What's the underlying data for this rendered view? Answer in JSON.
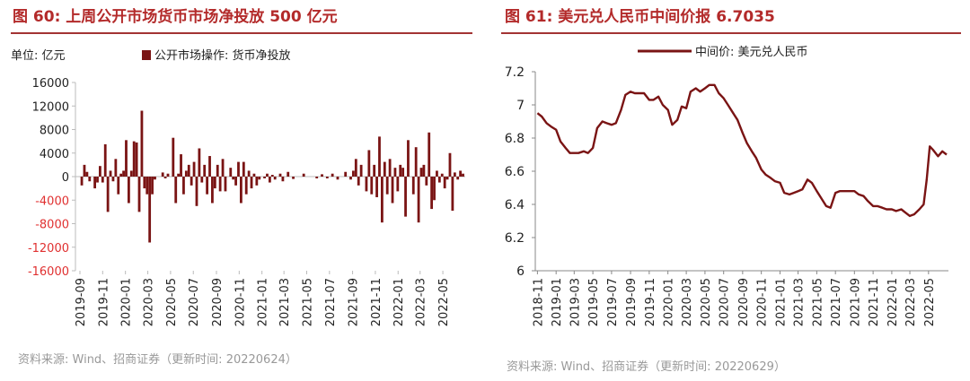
{
  "left_panel": {
    "title": "图 60:  上周公开市场货币市场净投放 500 亿元",
    "source": "资料来源:  Wind、招商证券（更新时间: 20220624）"
  },
  "right_panel": {
    "title": "图 61:  美元兑人民币中间价报 6.7035",
    "source": "资料来源:  Wind、招商证券（更新时间: 20220629）"
  },
  "colors": {
    "bar": "#7a1414",
    "line": "#7a1414",
    "title": "#b32a2a",
    "neg_ticks": "#e03030"
  },
  "chart_data": [
    {
      "type": "bar",
      "unit_label": "单位:  亿元",
      "legend": {
        "name": "公开市场操作: 货币净投放",
        "placement": "top-left"
      },
      "ylim": [
        -16000,
        16000
      ],
      "yticks": [
        "16000",
        "12000",
        "8000",
        "4000",
        "0",
        "-4000",
        "-8000",
        "-12000",
        "-16000"
      ],
      "xticks": [
        "2019-09",
        "2019-11",
        "2020-01",
        "2020-03",
        "2020-05",
        "2020-07",
        "2020-09",
        "2020-11",
        "2021-01",
        "2021-03",
        "2021-05",
        "2021-07",
        "2021-09",
        "2021-11",
        "2022-01",
        "2022-03",
        "2022-05"
      ],
      "grid": false,
      "series": [
        {
          "name": "公开市场操作: 货币净投放",
          "x": [
            "2019-09-06",
            "2019-09-13",
            "2019-09-20",
            "2019-09-27",
            "2019-10-11",
            "2019-10-18",
            "2019-10-25",
            "2019-11-01",
            "2019-11-08",
            "2019-11-15",
            "2019-11-22",
            "2019-11-29",
            "2019-12-06",
            "2019-12-13",
            "2019-12-20",
            "2019-12-27",
            "2020-01-03",
            "2020-01-10",
            "2020-01-17",
            "2020-01-24",
            "2020-01-31",
            "2020-02-07",
            "2020-02-14",
            "2020-02-21",
            "2020-02-28",
            "2020-03-06",
            "2020-03-13",
            "2020-03-20",
            "2020-04-10",
            "2020-04-17",
            "2020-04-24",
            "2020-05-08",
            "2020-05-15",
            "2020-05-22",
            "2020-05-29",
            "2020-06-05",
            "2020-06-12",
            "2020-06-19",
            "2020-06-26",
            "2020-07-03",
            "2020-07-10",
            "2020-07-17",
            "2020-07-24",
            "2020-07-31",
            "2020-08-07",
            "2020-08-14",
            "2020-08-21",
            "2020-08-28",
            "2020-09-04",
            "2020-09-11",
            "2020-09-18",
            "2020-09-25",
            "2020-10-09",
            "2020-10-16",
            "2020-10-23",
            "2020-10-30",
            "2020-11-06",
            "2020-11-13",
            "2020-11-20",
            "2020-11-27",
            "2020-12-04",
            "2020-12-11",
            "2020-12-18",
            "2020-12-25",
            "2021-01-08",
            "2021-01-15",
            "2021-01-22",
            "2021-01-29",
            "2021-02-05",
            "2021-02-19",
            "2021-02-26",
            "2021-03-12",
            "2021-03-26",
            "2021-04-23",
            "2021-05-28",
            "2021-06-11",
            "2021-06-25",
            "2021-07-09",
            "2021-07-23",
            "2021-08-13",
            "2021-08-27",
            "2021-09-03",
            "2021-09-10",
            "2021-09-17",
            "2021-09-24",
            "2021-10-08",
            "2021-10-15",
            "2021-10-22",
            "2021-10-29",
            "2021-11-05",
            "2021-11-12",
            "2021-11-19",
            "2021-11-26",
            "2021-12-03",
            "2021-12-10",
            "2021-12-17",
            "2021-12-24",
            "2021-12-31",
            "2022-01-07",
            "2022-01-14",
            "2022-01-21",
            "2022-01-28",
            "2022-02-11",
            "2022-02-18",
            "2022-02-25",
            "2022-03-04",
            "2022-03-11",
            "2022-03-18",
            "2022-03-25",
            "2022-04-01",
            "2022-04-08",
            "2022-04-15",
            "2022-04-22",
            "2022-04-29",
            "2022-05-06",
            "2022-05-13",
            "2022-05-20",
            "2022-05-27",
            "2022-06-02",
            "2022-06-10",
            "2022-06-17",
            "2022-06-24"
          ],
          "values": [
            -1500,
            2000,
            800,
            -800,
            -2000,
            -1000,
            1800,
            -1000,
            5500,
            -6000,
            1000,
            -800,
            3000,
            -3000,
            500,
            1000,
            6200,
            -4500,
            1000,
            6000,
            5800,
            -6000,
            11200,
            -2000,
            -3000,
            -11200,
            -3000,
            -500,
            700,
            -300,
            500,
            6600,
            -4500,
            500,
            3800,
            -3000,
            1000,
            2000,
            -1500,
            2500,
            -5000,
            4800,
            -1000,
            2000,
            -3000,
            3500,
            -4500,
            -2000,
            2000,
            -2500,
            3000,
            -2500,
            1500,
            -500,
            -1500,
            2500,
            -4500,
            2500,
            -3000,
            1000,
            -2000,
            500,
            -1500,
            -500,
            -300,
            500,
            -1000,
            300,
            -500,
            500,
            -800,
            800,
            -400,
            500,
            -300,
            400,
            -300,
            500,
            -500,
            800,
            -500,
            1000,
            3000,
            -1500,
            2000,
            -2500,
            4500,
            -3000,
            2000,
            -3500,
            6800,
            -7800,
            2500,
            -3000,
            3000,
            -4500,
            1500,
            -2500,
            2000,
            1500,
            -6800,
            6200,
            -3000,
            5000,
            -7800,
            1500,
            2000,
            -1500,
            7500,
            -5500,
            -4000,
            1000,
            -1000,
            500,
            -2000,
            -500,
            4000,
            -5800,
            700,
            -500,
            1000,
            500
          ]
        }
      ]
    },
    {
      "type": "line",
      "ylim": [
        6,
        7.2
      ],
      "yticks": [
        "7.2",
        "7",
        "6.8",
        "6.6",
        "6.4",
        "6.2",
        "6"
      ],
      "xticks": [
        "2018-11",
        "2019-01",
        "2019-03",
        "2019-05",
        "2019-07",
        "2019-09",
        "2019-11",
        "2020-01",
        "2020-03",
        "2020-05",
        "2020-07",
        "2020-09",
        "2020-11",
        "2021-01",
        "2021-03",
        "2021-05",
        "2021-07",
        "2021-09",
        "2021-11",
        "2022-01",
        "2022-03",
        "2022-05"
      ],
      "legend": {
        "name": "中间价: 美元兑人民币",
        "placement": "top"
      },
      "grid": false,
      "series": [
        {
          "name": "中间价: 美元兑人民币",
          "x": [
            "2018-11-01",
            "2018-11-15",
            "2018-12-01",
            "2018-12-15",
            "2019-01-01",
            "2019-01-15",
            "2019-02-01",
            "2019-02-15",
            "2019-03-01",
            "2019-03-15",
            "2019-04-01",
            "2019-04-15",
            "2019-05-01",
            "2019-05-15",
            "2019-06-01",
            "2019-06-15",
            "2019-07-01",
            "2019-07-15",
            "2019-08-01",
            "2019-08-15",
            "2019-09-01",
            "2019-09-15",
            "2019-10-01",
            "2019-10-15",
            "2019-11-01",
            "2019-11-15",
            "2019-12-01",
            "2019-12-15",
            "2020-01-01",
            "2020-01-15",
            "2020-02-01",
            "2020-02-15",
            "2020-03-01",
            "2020-03-15",
            "2020-04-01",
            "2020-04-15",
            "2020-05-01",
            "2020-05-15",
            "2020-06-01",
            "2020-06-15",
            "2020-07-01",
            "2020-07-15",
            "2020-08-01",
            "2020-08-15",
            "2020-09-01",
            "2020-09-15",
            "2020-10-01",
            "2020-10-15",
            "2020-11-01",
            "2020-11-15",
            "2020-12-01",
            "2020-12-15",
            "2021-01-01",
            "2021-01-15",
            "2021-02-01",
            "2021-02-15",
            "2021-03-01",
            "2021-03-15",
            "2021-04-01",
            "2021-04-15",
            "2021-05-01",
            "2021-05-15",
            "2021-06-01",
            "2021-06-15",
            "2021-07-01",
            "2021-07-15",
            "2021-08-01",
            "2021-08-15",
            "2021-09-01",
            "2021-09-15",
            "2021-10-01",
            "2021-10-15",
            "2021-11-01",
            "2021-11-15",
            "2021-12-01",
            "2021-12-15",
            "2022-01-01",
            "2022-01-15",
            "2022-02-01",
            "2022-02-15",
            "2022-03-01",
            "2022-03-15",
            "2022-04-01",
            "2022-04-15",
            "2022-04-25",
            "2022-05-05",
            "2022-05-15",
            "2022-06-01",
            "2022-06-15",
            "2022-06-29"
          ],
          "values": [
            6.95,
            6.93,
            6.89,
            6.87,
            6.85,
            6.78,
            6.74,
            6.71,
            6.71,
            6.71,
            6.72,
            6.71,
            6.74,
            6.86,
            6.9,
            6.89,
            6.88,
            6.89,
            6.97,
            7.06,
            7.08,
            7.07,
            7.07,
            7.07,
            7.03,
            7.03,
            7.05,
            7.0,
            6.97,
            6.88,
            6.91,
            6.99,
            6.98,
            7.08,
            7.1,
            7.08,
            7.1,
            7.12,
            7.12,
            7.07,
            7.04,
            7.0,
            6.95,
            6.91,
            6.83,
            6.77,
            6.72,
            6.68,
            6.61,
            6.58,
            6.56,
            6.54,
            6.53,
            6.47,
            6.46,
            6.47,
            6.48,
            6.49,
            6.55,
            6.53,
            6.48,
            6.44,
            6.39,
            6.38,
            6.47,
            6.48,
            6.48,
            6.48,
            6.48,
            6.46,
            6.45,
            6.42,
            6.39,
            6.39,
            6.38,
            6.37,
            6.37,
            6.36,
            6.37,
            6.35,
            6.33,
            6.34,
            6.37,
            6.4,
            6.55,
            6.75,
            6.73,
            6.69,
            6.72,
            6.7
          ]
        }
      ]
    }
  ]
}
